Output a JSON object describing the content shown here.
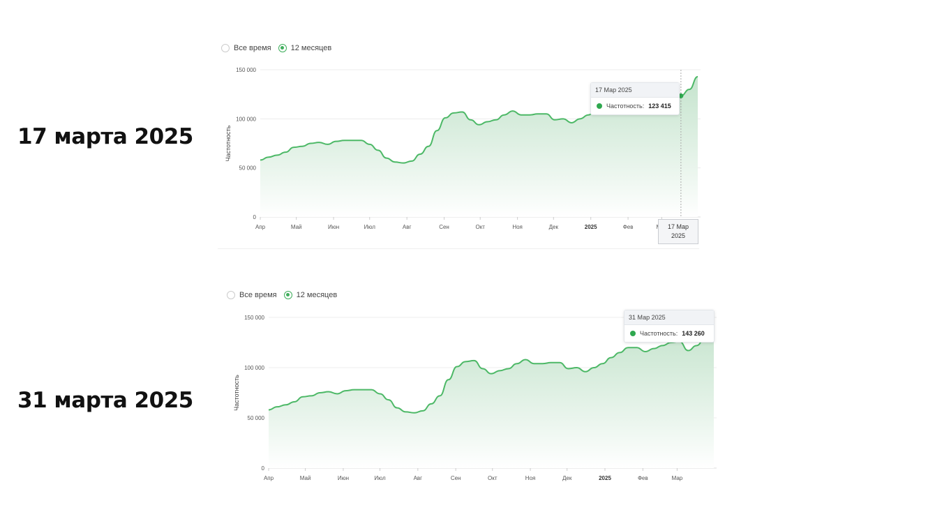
{
  "panels": [
    {
      "side_label": "17 марта 2025",
      "radio_options": [
        {
          "label": "Все время",
          "selected": false
        },
        {
          "label": "12 месяцев",
          "selected": true
        }
      ],
      "tooltip": {
        "date": "17 Мар 2025",
        "series": "Частотность:",
        "value": "123 415"
      },
      "crosshair_label": [
        "17 Мар",
        "2025"
      ]
    },
    {
      "side_label": "31 марта 2025",
      "radio_options": [
        {
          "label": "Все время",
          "selected": false
        },
        {
          "label": "12 месяцев",
          "selected": true
        }
      ],
      "tooltip": {
        "date": "31 Мар 2025",
        "series": "Частотность:",
        "value": "143 260"
      }
    }
  ],
  "colors": {
    "line": "#4cb866",
    "fill_top": "#bfe1c8",
    "accent": "#3fae5c"
  },
  "chart_data": [
    {
      "type": "area",
      "ylabel": "Частотность",
      "ylim": [
        0,
        150000
      ],
      "yticks": [
        "0",
        "50 000",
        "100 000",
        "150 000"
      ],
      "yticks_values": [
        0,
        50000,
        100000,
        150000
      ],
      "xticks": [
        "Апр",
        "Май",
        "Июн",
        "Июл",
        "Авг",
        "Сен",
        "Окт",
        "Ноя",
        "Дек",
        "2025",
        "Фев",
        "Мар"
      ],
      "xticks_dates": [
        "2024-04-01",
        "2024-05-01",
        "2024-06-01",
        "2024-07-01",
        "2024-08-01",
        "2024-09-01",
        "2024-10-01",
        "2024-11-01",
        "2024-12-01",
        "2025-01-01",
        "2025-02-01",
        "2025-03-01"
      ],
      "grid": true,
      "highlight": {
        "x": "2025-03-17",
        "y": 123415
      },
      "x": [
        "2024-04-01",
        "2024-04-08",
        "2024-04-15",
        "2024-04-22",
        "2024-04-29",
        "2024-05-06",
        "2024-05-13",
        "2024-05-20",
        "2024-05-27",
        "2024-06-03",
        "2024-06-10",
        "2024-06-17",
        "2024-06-24",
        "2024-07-01",
        "2024-07-08",
        "2024-07-15",
        "2024-07-22",
        "2024-07-29",
        "2024-08-05",
        "2024-08-12",
        "2024-08-19",
        "2024-08-26",
        "2024-09-02",
        "2024-09-09",
        "2024-09-16",
        "2024-09-23",
        "2024-09-30",
        "2024-10-07",
        "2024-10-14",
        "2024-10-21",
        "2024-10-28",
        "2024-11-04",
        "2024-11-11",
        "2024-11-18",
        "2024-11-25",
        "2024-12-02",
        "2024-12-09",
        "2024-12-16",
        "2024-12-23",
        "2024-12-30",
        "2025-01-06",
        "2025-01-13",
        "2025-01-20",
        "2025-01-27",
        "2025-02-03",
        "2025-02-10",
        "2025-02-17",
        "2025-02-24",
        "2025-03-03",
        "2025-03-10",
        "2025-03-17",
        "2025-03-24",
        "2025-03-31"
      ],
      "values": [
        58000,
        61000,
        63000,
        66000,
        71000,
        72000,
        75000,
        76000,
        74000,
        77000,
        78000,
        78000,
        78000,
        74000,
        68000,
        60000,
        56000,
        55000,
        57000,
        64000,
        72000,
        88000,
        101000,
        106000,
        107000,
        99000,
        94000,
        97000,
        99000,
        104000,
        108000,
        104000,
        104000,
        105000,
        105000,
        99000,
        100000,
        96000,
        100000,
        104000,
        110000,
        115000,
        118000,
        120000,
        121000,
        119000,
        122000,
        120000,
        121000,
        122000,
        123415,
        130000,
        143000
      ]
    },
    {
      "type": "area",
      "ylabel": "Частотность",
      "ylim": [
        0,
        150000
      ],
      "yticks": [
        "0",
        "50 000",
        "100 000",
        "150 000"
      ],
      "yticks_values": [
        0,
        50000,
        100000,
        150000
      ],
      "xticks": [
        "Апр",
        "Май",
        "Июн",
        "Июл",
        "Авг",
        "Сен",
        "Окт",
        "Ноя",
        "Дек",
        "2025",
        "Фев",
        "Мар"
      ],
      "xticks_dates": [
        "2024-04-01",
        "2024-05-01",
        "2024-06-01",
        "2024-07-01",
        "2024-08-01",
        "2024-09-01",
        "2024-10-01",
        "2024-11-01",
        "2024-12-01",
        "2025-01-01",
        "2025-02-01",
        "2025-03-01"
      ],
      "grid": true,
      "highlight": {
        "x": "2025-03-31",
        "y": 143260
      },
      "x": [
        "2024-04-01",
        "2024-04-08",
        "2024-04-15",
        "2024-04-22",
        "2024-04-29",
        "2024-05-06",
        "2024-05-13",
        "2024-05-20",
        "2024-05-27",
        "2024-06-03",
        "2024-06-10",
        "2024-06-17",
        "2024-06-24",
        "2024-07-01",
        "2024-07-08",
        "2024-07-15",
        "2024-07-22",
        "2024-07-29",
        "2024-08-05",
        "2024-08-12",
        "2024-08-19",
        "2024-08-26",
        "2024-09-02",
        "2024-09-09",
        "2024-09-16",
        "2024-09-23",
        "2024-09-30",
        "2024-10-07",
        "2024-10-14",
        "2024-10-21",
        "2024-10-28",
        "2024-11-04",
        "2024-11-11",
        "2024-11-18",
        "2024-11-25",
        "2024-12-02",
        "2024-12-09",
        "2024-12-16",
        "2024-12-23",
        "2024-12-30",
        "2025-01-06",
        "2025-01-13",
        "2025-01-20",
        "2025-01-27",
        "2025-02-03",
        "2025-02-10",
        "2025-02-17",
        "2025-02-24",
        "2025-03-03",
        "2025-03-10",
        "2025-03-17",
        "2025-03-24",
        "2025-03-31"
      ],
      "values": [
        58000,
        61000,
        63000,
        66000,
        71000,
        72000,
        75000,
        76000,
        74000,
        77000,
        78000,
        78000,
        78000,
        74000,
        68000,
        60000,
        56000,
        55000,
        57000,
        64000,
        72000,
        88000,
        101000,
        106000,
        107000,
        99000,
        94000,
        97000,
        99000,
        104000,
        108000,
        104000,
        104000,
        105000,
        105000,
        99000,
        100000,
        96000,
        100000,
        104000,
        110000,
        115000,
        120000,
        120000,
        116000,
        119000,
        122000,
        125000,
        126000,
        117000,
        122000,
        130000,
        143260
      ]
    }
  ]
}
